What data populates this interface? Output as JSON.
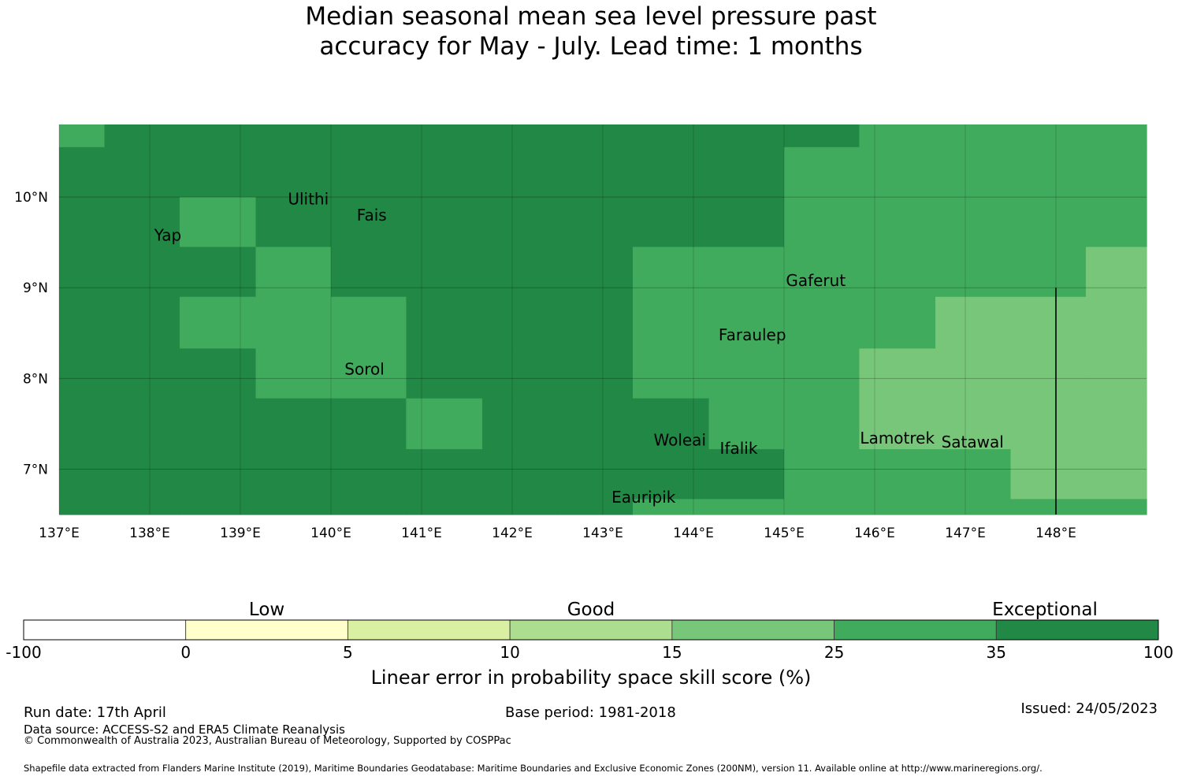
{
  "title": {
    "line1": "Median seasonal mean sea level pressure past",
    "line2": "accuracy for May - July. Lead time: 1 months"
  },
  "map": {
    "lon_range": [
      137,
      149
    ],
    "lat_range": [
      6.5,
      10.8
    ],
    "lon_ticks": [
      {
        "value": 137,
        "label": "137°E"
      },
      {
        "value": 138,
        "label": "138°E"
      },
      {
        "value": 139,
        "label": "139°E"
      },
      {
        "value": 140,
        "label": "140°E"
      },
      {
        "value": 141,
        "label": "141°E"
      },
      {
        "value": 142,
        "label": "142°E"
      },
      {
        "value": 143,
        "label": "143°E"
      },
      {
        "value": 144,
        "label": "144°E"
      },
      {
        "value": 145,
        "label": "145°E"
      },
      {
        "value": 146,
        "label": "146°E"
      },
      {
        "value": 147,
        "label": "147°E"
      },
      {
        "value": 148,
        "label": "148°E"
      }
    ],
    "lat_ticks": [
      {
        "value": 10,
        "label": "10°N"
      },
      {
        "value": 9,
        "label": "9°N"
      },
      {
        "value": 8,
        "label": "8°N"
      },
      {
        "value": 7,
        "label": "7°N"
      }
    ],
    "grid": true,
    "cell_colors": {
      "exceptional": "#228845",
      "band_25_35": "#41ab5d",
      "band_15_25": "#78c679"
    },
    "cell_lon_edges": [
      137.0,
      137.5,
      138.33,
      139.17,
      140.0,
      140.83,
      141.67,
      142.5,
      143.33,
      144.17,
      145.0,
      145.83,
      146.67,
      147.5,
      148.33,
      149.0
    ],
    "cell_lat_edges": [
      10.8,
      10.55,
      10.0,
      9.45,
      8.9,
      8.33,
      7.78,
      7.22,
      6.67,
      6.5
    ],
    "cells": [
      [
        "band_25_35",
        "exceptional",
        "exceptional",
        "exceptional",
        "exceptional",
        "exceptional",
        "exceptional",
        "exceptional",
        "exceptional",
        "exceptional",
        "exceptional",
        "band_25_35",
        "band_25_35",
        "band_25_35",
        "band_25_35"
      ],
      [
        "exceptional",
        "exceptional",
        "exceptional",
        "exceptional",
        "exceptional",
        "exceptional",
        "exceptional",
        "exceptional",
        "exceptional",
        "exceptional",
        "band_25_35",
        "band_25_35",
        "band_25_35",
        "band_25_35",
        "band_25_35"
      ],
      [
        "exceptional",
        "exceptional",
        "band_25_35",
        "exceptional",
        "exceptional",
        "exceptional",
        "exceptional",
        "exceptional",
        "exceptional",
        "exceptional",
        "band_25_35",
        "band_25_35",
        "band_25_35",
        "band_25_35",
        "band_25_35"
      ],
      [
        "exceptional",
        "exceptional",
        "exceptional",
        "band_25_35",
        "exceptional",
        "exceptional",
        "exceptional",
        "exceptional",
        "band_25_35",
        "band_25_35",
        "band_25_35",
        "band_25_35",
        "band_25_35",
        "band_25_35",
        "band_15_25"
      ],
      [
        "exceptional",
        "exceptional",
        "band_25_35",
        "band_25_35",
        "band_25_35",
        "exceptional",
        "exceptional",
        "exceptional",
        "band_25_35",
        "band_25_35",
        "band_25_35",
        "band_25_35",
        "band_15_25",
        "band_15_25",
        "band_15_25"
      ],
      [
        "exceptional",
        "exceptional",
        "exceptional",
        "band_25_35",
        "band_25_35",
        "exceptional",
        "exceptional",
        "exceptional",
        "band_25_35",
        "band_25_35",
        "band_25_35",
        "band_15_25",
        "band_15_25",
        "band_15_25",
        "band_15_25"
      ],
      [
        "exceptional",
        "exceptional",
        "exceptional",
        "exceptional",
        "exceptional",
        "band_25_35",
        "exceptional",
        "exceptional",
        "exceptional",
        "band_25_35",
        "band_25_35",
        "band_15_25",
        "band_15_25",
        "band_15_25",
        "band_15_25"
      ],
      [
        "exceptional",
        "exceptional",
        "exceptional",
        "exceptional",
        "exceptional",
        "exceptional",
        "exceptional",
        "exceptional",
        "exceptional",
        "exceptional",
        "band_25_35",
        "band_25_35",
        "band_25_35",
        "band_15_25",
        "band_15_25"
      ],
      [
        "exceptional",
        "exceptional",
        "exceptional",
        "exceptional",
        "exceptional",
        "exceptional",
        "exceptional",
        "exceptional",
        "band_25_35",
        "band_25_35",
        "band_25_35",
        "band_25_35",
        "band_25_35",
        "band_25_35",
        "band_25_35"
      ]
    ],
    "places": [
      {
        "name": "Ulithi",
        "lon": 139.75,
        "lat": 9.92
      },
      {
        "name": "Fais",
        "lon": 140.45,
        "lat": 9.74
      },
      {
        "name": "Yap",
        "lon": 138.2,
        "lat": 9.52
      },
      {
        "name": "Gaferut",
        "lon": 145.35,
        "lat": 9.02
      },
      {
        "name": "Faraulep",
        "lon": 144.65,
        "lat": 8.42
      },
      {
        "name": "Sorol",
        "lon": 140.37,
        "lat": 8.04
      },
      {
        "name": "Woleai",
        "lon": 143.85,
        "lat": 7.26
      },
      {
        "name": "Ifalik",
        "lon": 144.5,
        "lat": 7.17
      },
      {
        "name": "Lamotrek",
        "lon": 146.25,
        "lat": 7.28
      },
      {
        "name": "Satawal",
        "lon": 147.08,
        "lat": 7.24
      },
      {
        "name": "Eauripik",
        "lon": 143.45,
        "lat": 6.63
      }
    ],
    "boundary_line": {
      "lon": 148.0,
      "lat_from": 9.0,
      "lat_to": 6.5
    }
  },
  "colorbar": {
    "category_labels": [
      "Low",
      "Good",
      "Exceptional"
    ],
    "boundaries": [
      "-100",
      "0",
      "5",
      "10",
      "15",
      "25",
      "35",
      "100"
    ],
    "colors": [
      "#ffffff",
      "#ffffcc",
      "#d9f0a3",
      "#addd8e",
      "#78c679",
      "#41ab5d",
      "#228845"
    ],
    "label": "Linear error in probability space skill score (%)"
  },
  "footer": {
    "run_date": "Run date: 17th April",
    "base_period": "Base period: 1981-2018",
    "issued": "Issued: 24/05/2023",
    "data_source": "Data source: ACCESS-S2 and ERA5 Climate Reanalysis",
    "copyright": "© Commonwealth of Australia 2023, Australian Bureau of Meteorology, Supported by COSPPac",
    "shapefile": "Shapefile data extracted from Flanders Marine Institute (2019), Maritime Boundaries Geodatabase: Maritime Boundaries and Exclusive Economic Zones (200NM), version 11. Available online at http://www.marineregions.org/."
  }
}
